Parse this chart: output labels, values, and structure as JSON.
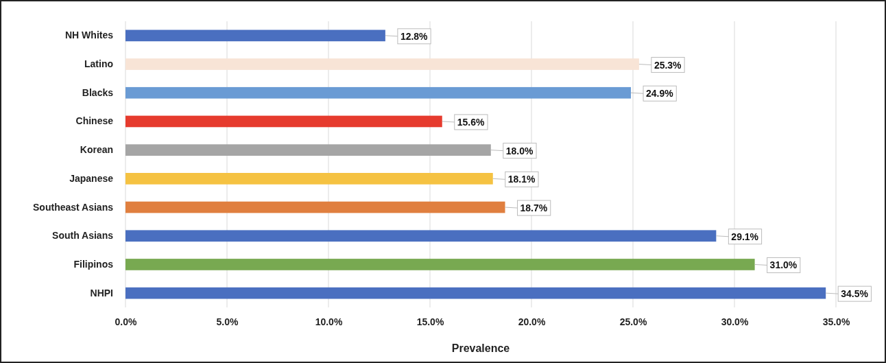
{
  "chart_data": {
    "type": "bar",
    "orientation": "horizontal",
    "xlabel": "Prevalence",
    "categories": [
      "NH Whites",
      "Latino",
      "Blacks",
      "Chinese",
      "Korean",
      "Japanese",
      "Southeast Asians",
      "South Asians",
      "Filipinos",
      "NHPI"
    ],
    "values": [
      12.8,
      25.3,
      24.9,
      15.6,
      18.0,
      18.1,
      18.7,
      29.1,
      31.0,
      34.5
    ],
    "colors": [
      "#4a6fc0",
      "#f8e4d6",
      "#6a9bd4",
      "#e63b2e",
      "#a5a5a5",
      "#f5c242",
      "#e07f3f",
      "#4a6fc0",
      "#78a951",
      "#4a6fc0"
    ],
    "value_labels": [
      "12.8%",
      "25.3%",
      "24.9%",
      "15.6%",
      "18.0%",
      "18.1%",
      "18.7%",
      "29.1%",
      "31.0%",
      "34.5%"
    ],
    "xlim": [
      0,
      35
    ],
    "xticks": [
      {
        "value": 0,
        "label": "0.0%"
      },
      {
        "value": 5,
        "label": "5.0%"
      },
      {
        "value": 10,
        "label": "10.0%"
      },
      {
        "value": 15,
        "label": "15.0%"
      },
      {
        "value": 20,
        "label": "20.0%"
      },
      {
        "value": 25,
        "label": "25.0%"
      },
      {
        "value": 30,
        "label": "30.0%"
      },
      {
        "value": 35,
        "label": "35.0%"
      }
    ],
    "grid": "x"
  }
}
